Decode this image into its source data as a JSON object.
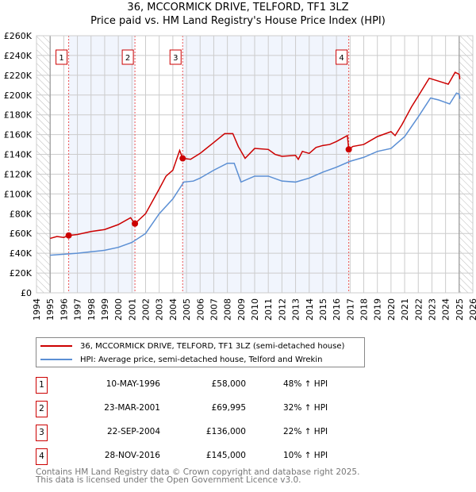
{
  "chart_data": {
    "type": "line",
    "title": "36, MCCORMICK DRIVE, TELFORD, TF1 3LZ",
    "subtitle": "Price paid vs. HM Land Registry's House Price Index (HPI)",
    "xlim": [
      1994,
      2026
    ],
    "ylim": [
      0,
      260000
    ],
    "x_ticks": [
      "1994",
      "1995",
      "1996",
      "1997",
      "1998",
      "1999",
      "2000",
      "2001",
      "2002",
      "2003",
      "2004",
      "2005",
      "2006",
      "2007",
      "2008",
      "2009",
      "2010",
      "2011",
      "2012",
      "2013",
      "2014",
      "2015",
      "2016",
      "2017",
      "2018",
      "2019",
      "2020",
      "2021",
      "2022",
      "2023",
      "2024",
      "2025",
      "2026"
    ],
    "y_ticks": [
      {
        "v": 0,
        "label": "£0"
      },
      {
        "v": 20000,
        "label": "£20K"
      },
      {
        "v": 40000,
        "label": "£40K"
      },
      {
        "v": 60000,
        "label": "£60K"
      },
      {
        "v": 80000,
        "label": "£80K"
      },
      {
        "v": 100000,
        "label": "£100K"
      },
      {
        "v": 120000,
        "label": "£120K"
      },
      {
        "v": 140000,
        "label": "£140K"
      },
      {
        "v": 160000,
        "label": "£160K"
      },
      {
        "v": 180000,
        "label": "£180K"
      },
      {
        "v": 200000,
        "label": "£200K"
      },
      {
        "v": 220000,
        "label": "£220K"
      },
      {
        "v": 240000,
        "label": "£240K"
      },
      {
        "v": 260000,
        "label": "£260K"
      }
    ],
    "grid": true,
    "series": [
      {
        "name": "36, MCCORMICK DRIVE, TELFORD, TF1 3LZ (semi-detached house)",
        "color": "#cc0000",
        "x": [
          1995,
          1995.5,
          1996,
          1996.36,
          1997,
          1998,
          1999,
          2000,
          2000.9,
          2001.22,
          2002,
          2003,
          2003.5,
          2004,
          2004.5,
          2004.72,
          2005.3,
          2006,
          2007,
          2007.8,
          2008.4,
          2008.8,
          2009.3,
          2010,
          2011,
          2011.5,
          2012,
          2013,
          2013.2,
          2013.5,
          2014,
          2014.5,
          2015,
          2015.5,
          2016,
          2016.8,
          2016.9,
          2017.2,
          2018,
          2019,
          2020,
          2020.3,
          2020.8,
          2021.5,
          2022,
          2022.8,
          2023.5,
          2024.2,
          2024.7,
          2025,
          2025.05
        ],
        "y": [
          55000,
          57000,
          56000,
          58000,
          59000,
          62000,
          64000,
          69000,
          76000,
          70000,
          80000,
          105000,
          118000,
          124000,
          144000,
          136000,
          135000,
          141000,
          152000,
          161000,
          161000,
          148000,
          136000,
          146000,
          145000,
          140000,
          138000,
          139000,
          135000,
          143000,
          141000,
          147000,
          149000,
          150000,
          153000,
          159000,
          145000,
          148000,
          150000,
          158000,
          163000,
          159000,
          170000,
          188000,
          199000,
          217000,
          214000,
          211000,
          223000,
          221000,
          216000
        ]
      },
      {
        "name": "HPI: Average price, semi-detached house, Telford and Wrekin",
        "color": "#5b8fd4",
        "x": [
          1995,
          1996,
          1997,
          1998,
          1999,
          2000,
          2001,
          2002,
          2003,
          2004,
          2004.8,
          2005.5,
          2006,
          2007,
          2008,
          2008.5,
          2009,
          2010,
          2011,
          2012,
          2013,
          2014,
          2015,
          2016,
          2017,
          2018,
          2019,
          2020,
          2021,
          2022,
          2022.9,
          2023.5,
          2024.3,
          2024.8,
          2025,
          2025.05
        ],
        "y": [
          38000,
          39000,
          40000,
          41500,
          43000,
          46000,
          51000,
          60000,
          80000,
          95000,
          112000,
          113000,
          116000,
          124000,
          131000,
          131000,
          112000,
          118000,
          118000,
          113000,
          112000,
          116000,
          122000,
          127000,
          133000,
          137000,
          143000,
          146000,
          158000,
          178000,
          197000,
          195000,
          191000,
          202000,
          201000,
          196000
        ]
      }
    ],
    "sales": [
      {
        "n": "1",
        "x": 1996.36,
        "price": 58000,
        "date": "10-MAY-1996",
        "price_label": "£58,000",
        "hpi": "48% ↑ HPI"
      },
      {
        "n": "2",
        "x": 2001.22,
        "price": 69995,
        "date": "23-MAR-2001",
        "price_label": "£69,995",
        "hpi": "32% ↑ HPI"
      },
      {
        "n": "3",
        "x": 2004.72,
        "price": 136000,
        "date": "22-SEP-2004",
        "price_label": "£136,000",
        "hpi": "22% ↑ HPI"
      },
      {
        "n": "4",
        "x": 2016.9,
        "price": 145000,
        "date": "28-NOV-2016",
        "price_label": "£145,000",
        "hpi": "10% ↑ HPI"
      }
    ],
    "shaded_periods": [
      [
        1996.36,
        2001.22
      ],
      [
        2004.72,
        2016.9
      ]
    ],
    "hatched_periods": [
      [
        1994,
        1995
      ],
      [
        2025,
        2026
      ]
    ],
    "legend_position": "below"
  },
  "footer": {
    "line1": "Contains HM Land Registry data © Crown copyright and database right 2025.",
    "line2": "This data is licensed under the Open Government Licence v3.0."
  }
}
